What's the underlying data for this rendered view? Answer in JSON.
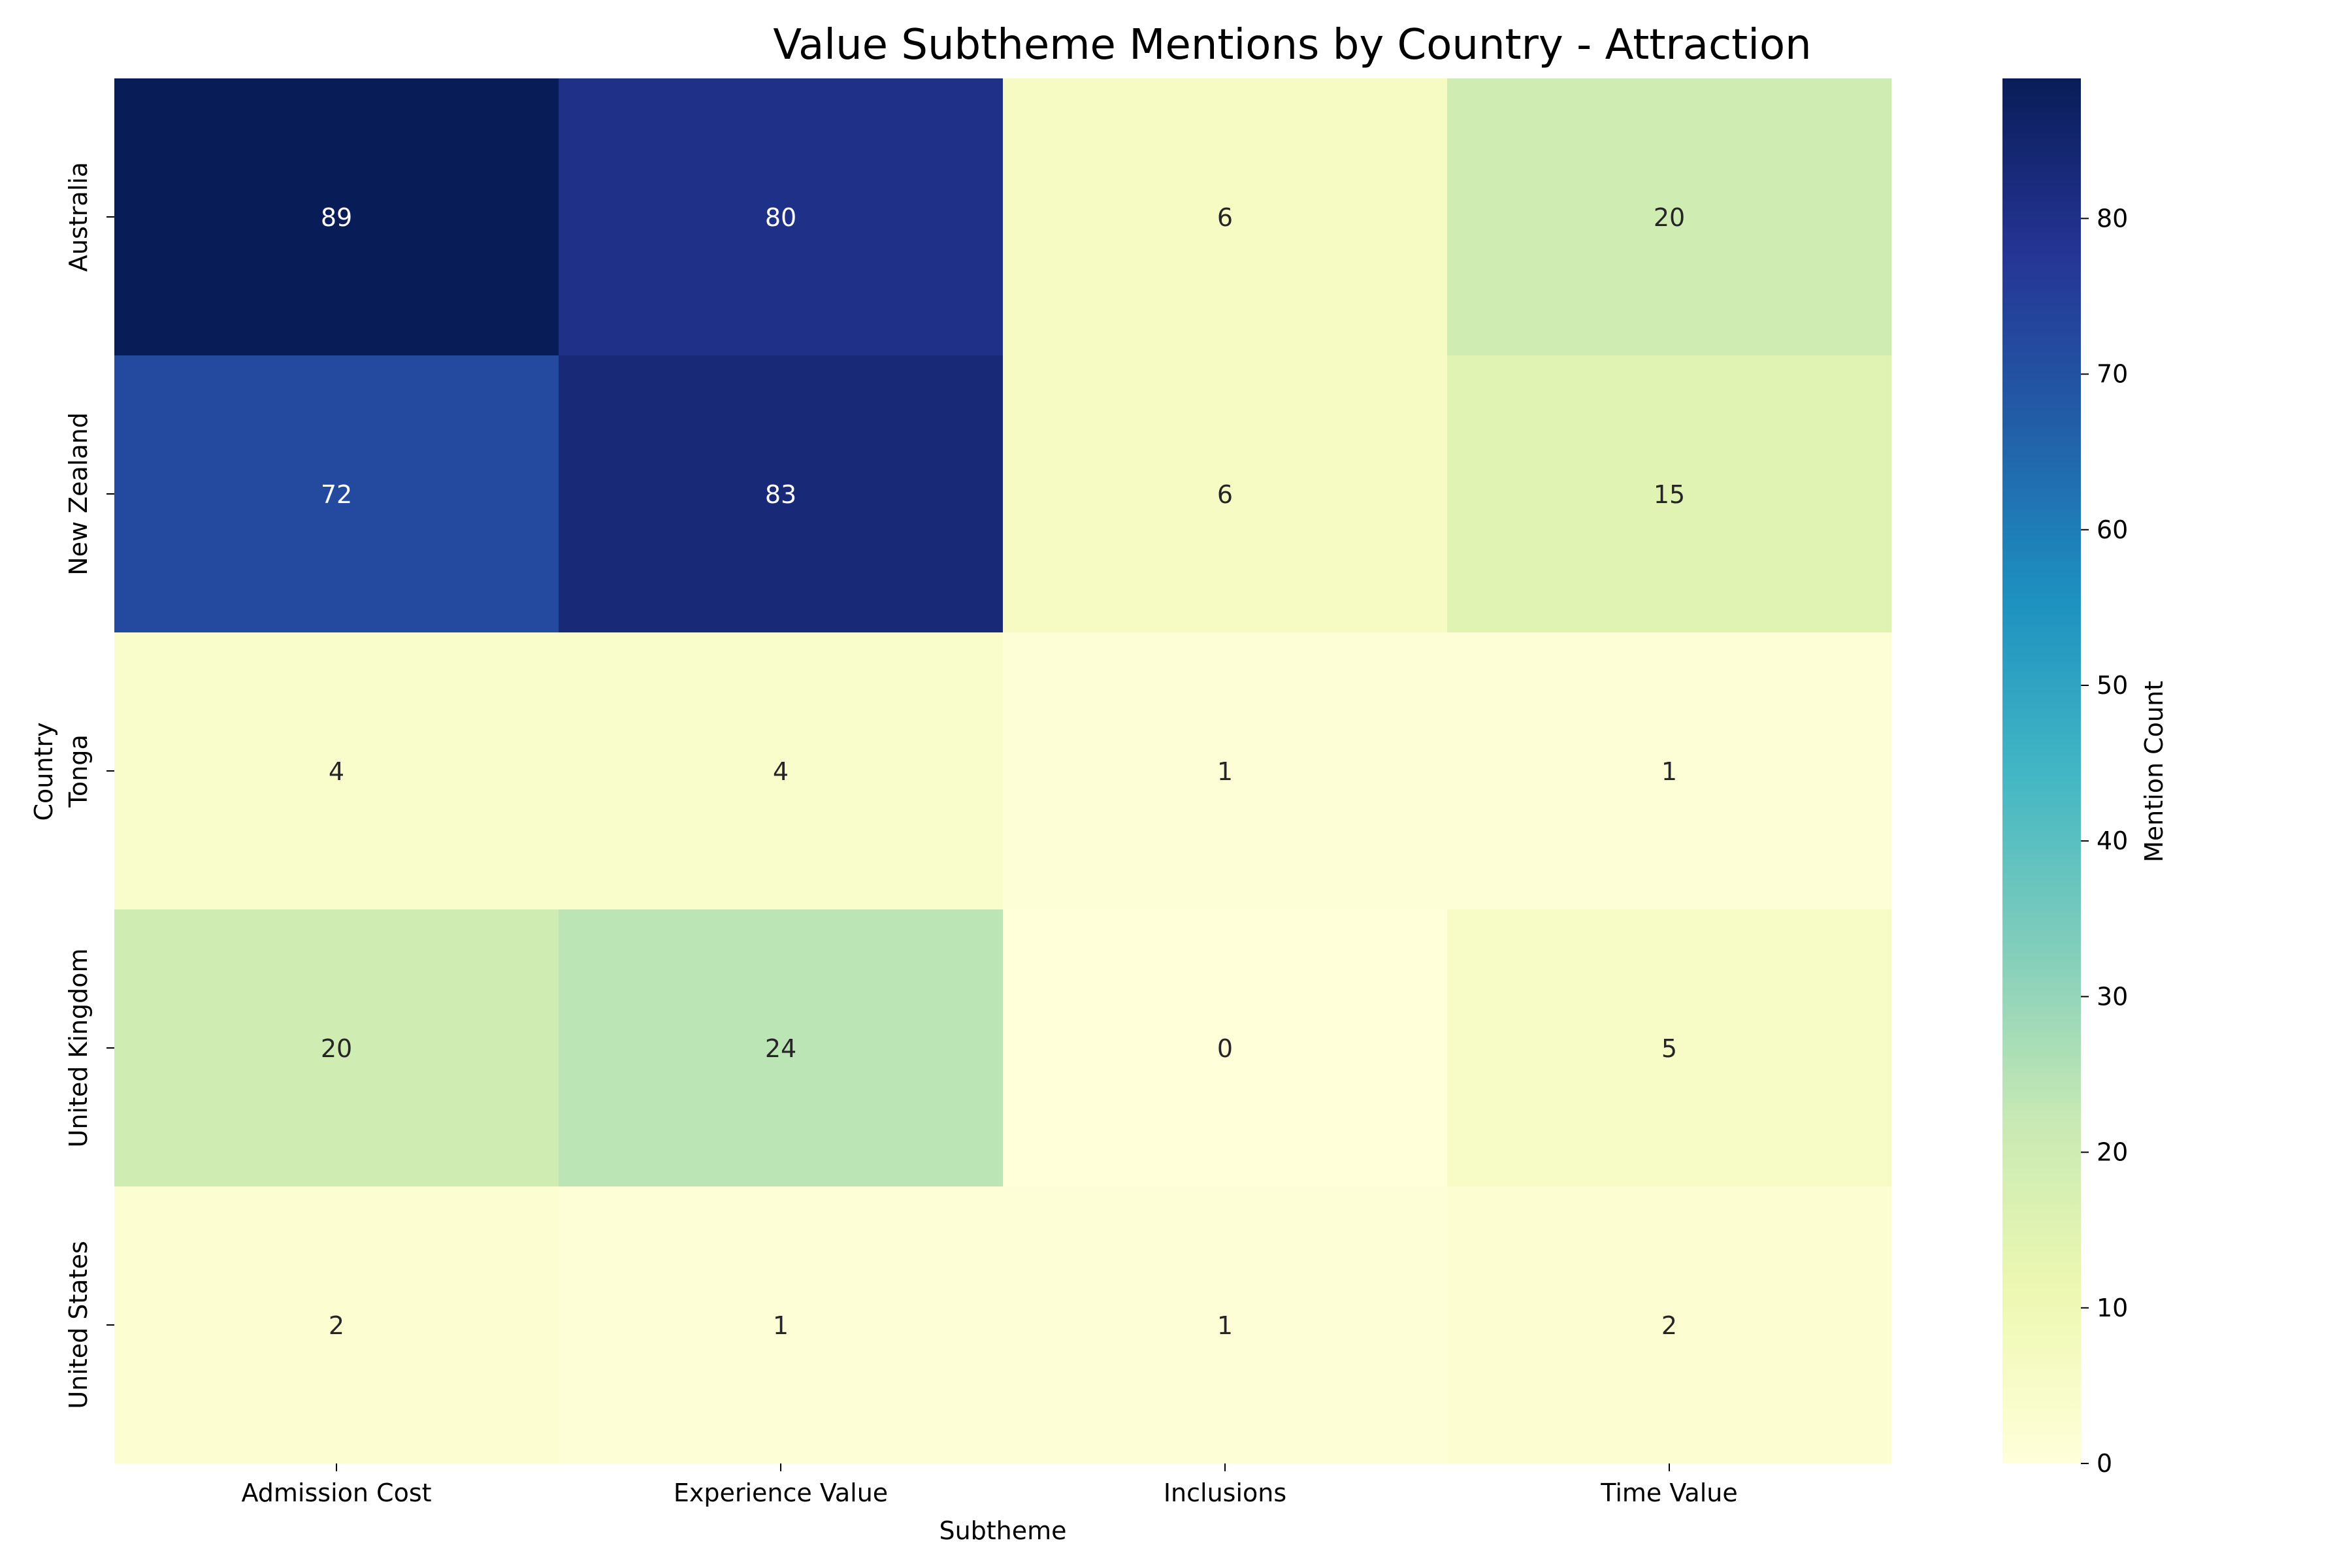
{
  "chart_data": {
    "type": "heatmap",
    "title": "Value Subtheme Mentions by Country - Attraction",
    "xlabel": "Subtheme",
    "ylabel": "Country",
    "x_categories": [
      "Admission Cost",
      "Experience Value",
      "Inclusions",
      "Time Value"
    ],
    "y_categories": [
      "Australia",
      "New Zealand",
      "Tonga",
      "United Kingdom",
      "United States"
    ],
    "values": [
      [
        89,
        80,
        6,
        20
      ],
      [
        72,
        83,
        6,
        15
      ],
      [
        4,
        4,
        1,
        1
      ],
      [
        20,
        24,
        0,
        5
      ],
      [
        2,
        1,
        1,
        2
      ]
    ],
    "colorbar": {
      "label": "Mention Count",
      "min": 0,
      "max": 89,
      "ticks": [
        0,
        10,
        20,
        30,
        40,
        50,
        60,
        70,
        80
      ]
    },
    "colormap": "YlGnBu",
    "colormap_stops": [
      "#ffffd9",
      "#edf8b1",
      "#c7e9b4",
      "#7fcdbb",
      "#41b6c4",
      "#1d91c0",
      "#225ea8",
      "#253494",
      "#081d58"
    ],
    "annotations": true,
    "grid": false
  }
}
